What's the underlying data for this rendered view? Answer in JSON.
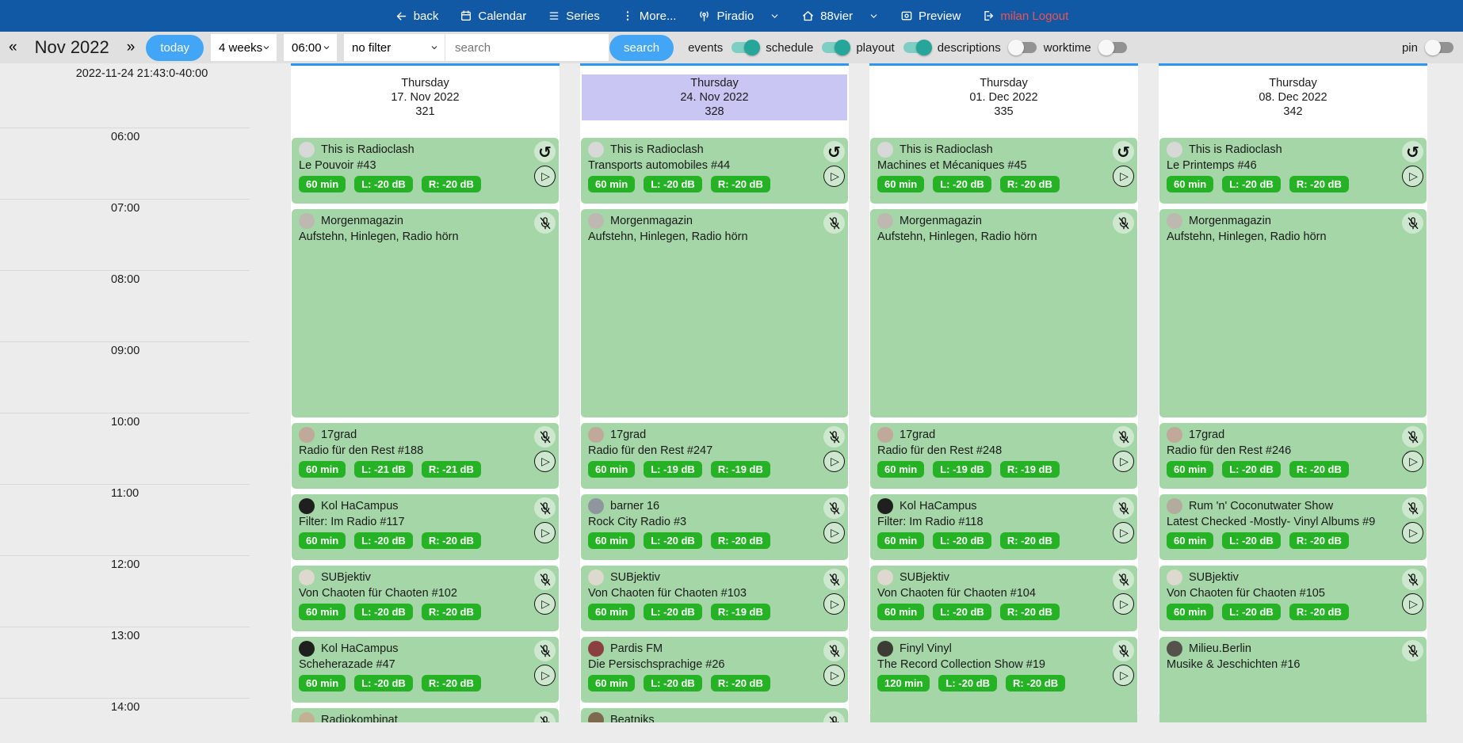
{
  "navbar": {
    "items": [
      {
        "id": "back",
        "label": "back",
        "icon": "arrow-left"
      },
      {
        "id": "calendar",
        "label": "Calendar",
        "icon": "calendar"
      },
      {
        "id": "series",
        "label": "Series",
        "icon": "list"
      },
      {
        "id": "more",
        "label": "More...",
        "icon": "kebab"
      },
      {
        "id": "piradio",
        "label": "Piradio",
        "icon": "antenna",
        "chevron": true
      },
      {
        "id": "88vier",
        "label": "88vier",
        "icon": "home",
        "chevron": true
      },
      {
        "id": "preview",
        "label": "Preview",
        "icon": "preview"
      },
      {
        "id": "logout",
        "label": "milan Logout",
        "icon": "logout",
        "danger": true
      }
    ]
  },
  "toolbar": {
    "prev": "«",
    "month_label": "Nov 2022",
    "next": "»",
    "today_button": "today",
    "range_select": "4 weeks",
    "start_time_select": "06:00",
    "filter_select": "no filter",
    "search_placeholder": "search",
    "search_button": "search",
    "toggles": [
      {
        "label": "events",
        "on": true
      },
      {
        "label": "schedule",
        "on": true
      },
      {
        "label": "playout",
        "on": true
      },
      {
        "label": "descriptions",
        "on": false
      },
      {
        "label": "worktime",
        "on": false
      },
      {
        "label": "pin",
        "on": false,
        "far_right": true
      }
    ]
  },
  "timeline": {
    "timestamp": "2022-11-24 21:43:0-40:00",
    "hours": [
      "06:00",
      "07:00",
      "08:00",
      "09:00",
      "10:00",
      "11:00",
      "12:00",
      "13:00",
      "14:00"
    ]
  },
  "colors": {
    "navbar": "#1159a5",
    "accent_button": "#42a5f5",
    "event_card": "#a5d6a7",
    "badge": "#25b325",
    "highlight_header": "#cac6f3",
    "toggle_on": "#26a69a",
    "logout_text": "#ef5350",
    "column_top_border": "#2d96f2"
  },
  "columns": [
    {
      "day": "Thursday",
      "date": "17. Nov 2022",
      "number": "321",
      "highlighted": false,
      "events": [
        {
          "title": "This is Radioclash",
          "subtitle": "Le Pouvoir #43",
          "badges": [
            "60 min",
            "L: -20 dB",
            "R: -20 dB"
          ],
          "icons": [
            "refresh",
            "play"
          ],
          "start": 6,
          "duration": 1,
          "avatar": "#d8d8d8"
        },
        {
          "title": "Morgenmagazin",
          "subtitle": "Aufstehn, Hinlegen, Radio hörn",
          "badges": [],
          "icons": [
            "mute"
          ],
          "start": 7,
          "duration": 3,
          "avatar": "#bdb8b0"
        },
        {
          "title": "17grad",
          "subtitle": "Radio für den Rest #188",
          "badges": [
            "60 min",
            "L: -21 dB",
            "R: -21 dB"
          ],
          "icons": [
            "mute",
            "play"
          ],
          "start": 10,
          "duration": 1,
          "avatar": "#c0a89a"
        },
        {
          "title": "Kol HaCampus",
          "subtitle": "Filter: Im Radio #117",
          "badges": [
            "60 min",
            "L: -20 dB",
            "R: -20 dB"
          ],
          "icons": [
            "mute",
            "play"
          ],
          "start": 11,
          "duration": 1,
          "avatar": "#1f1f1f"
        },
        {
          "title": "SUBjektiv",
          "subtitle": "Von Chaoten für Chaoten #102",
          "badges": [
            "60 min",
            "L: -20 dB",
            "R: -20 dB"
          ],
          "icons": [
            "mute",
            "play"
          ],
          "start": 12,
          "duration": 1,
          "avatar": "#ded9ce"
        },
        {
          "title": "Kol HaCampus",
          "subtitle": "Scheherazade #47",
          "badges": [
            "60 min",
            "L: -20 dB",
            "R: -20 dB"
          ],
          "icons": [
            "mute",
            "play"
          ],
          "start": 13,
          "duration": 1,
          "avatar": "#1f1f1f"
        },
        {
          "title": "Radiokombinat",
          "subtitle": "",
          "badges": [],
          "icons": [
            "mute"
          ],
          "start": 14,
          "duration": 1,
          "avatar": "#c3b193"
        }
      ]
    },
    {
      "day": "Thursday",
      "date": "24. Nov 2022",
      "number": "328",
      "highlighted": true,
      "events": [
        {
          "title": "This is Radioclash",
          "subtitle": "Transports automobiles #44",
          "badges": [
            "60 min",
            "L: -20 dB",
            "R: -20 dB"
          ],
          "icons": [
            "refresh",
            "play"
          ],
          "start": 6,
          "duration": 1,
          "avatar": "#d8d8d8"
        },
        {
          "title": "Morgenmagazin",
          "subtitle": "Aufstehn, Hinlegen, Radio hörn",
          "badges": [],
          "icons": [
            "mute"
          ],
          "start": 7,
          "duration": 3,
          "avatar": "#bdb8b0"
        },
        {
          "title": "17grad",
          "subtitle": "Radio für den Rest #247",
          "badges": [
            "60 min",
            "L: -19 dB",
            "R: -19 dB"
          ],
          "icons": [
            "mute",
            "play"
          ],
          "start": 10,
          "duration": 1,
          "avatar": "#c0a89a"
        },
        {
          "title": "barner 16",
          "subtitle": "Rock City Radio #3",
          "badges": [
            "60 min",
            "L: -20 dB",
            "R: -20 dB"
          ],
          "icons": [
            "mute",
            "play"
          ],
          "start": 11,
          "duration": 1,
          "avatar": "#8f969e"
        },
        {
          "title": "SUBjektiv",
          "subtitle": "Von Chaoten für Chaoten #103",
          "badges": [
            "60 min",
            "L: -20 dB",
            "R: -19 dB"
          ],
          "icons": [
            "mute",
            "play"
          ],
          "start": 12,
          "duration": 1,
          "avatar": "#ded9ce"
        },
        {
          "title": "Pardis FM",
          "subtitle": "Die Persischsprachige #26",
          "badges": [
            "60 min",
            "L: -20 dB",
            "R: -20 dB"
          ],
          "icons": [
            "mute",
            "play"
          ],
          "start": 13,
          "duration": 1,
          "avatar": "#8a4040"
        },
        {
          "title": "Beatniks",
          "subtitle": "",
          "badges": [],
          "icons": [
            "mute"
          ],
          "start": 14,
          "duration": 1,
          "avatar": "#7d6a4e"
        }
      ]
    },
    {
      "day": "Thursday",
      "date": "01. Dec 2022",
      "number": "335",
      "highlighted": false,
      "events": [
        {
          "title": "This is Radioclash",
          "subtitle": "Machines et Mécaniques #45",
          "badges": [
            "60 min",
            "L: -20 dB",
            "R: -20 dB"
          ],
          "icons": [
            "refresh",
            "play"
          ],
          "start": 6,
          "duration": 1,
          "avatar": "#d8d8d8"
        },
        {
          "title": "Morgenmagazin",
          "subtitle": "Aufstehn, Hinlegen, Radio hörn",
          "badges": [],
          "icons": [
            "mute"
          ],
          "start": 7,
          "duration": 3,
          "avatar": "#bdb8b0"
        },
        {
          "title": "17grad",
          "subtitle": "Radio für den Rest #248",
          "badges": [
            "60 min",
            "L: -19 dB",
            "R: -19 dB"
          ],
          "icons": [
            "mute",
            "play"
          ],
          "start": 10,
          "duration": 1,
          "avatar": "#c0a89a"
        },
        {
          "title": "Kol HaCampus",
          "subtitle": "Filter: Im Radio #118",
          "badges": [
            "60 min",
            "L: -20 dB",
            "R: -20 dB"
          ],
          "icons": [
            "mute",
            "play"
          ],
          "start": 11,
          "duration": 1,
          "avatar": "#1f1f1f"
        },
        {
          "title": "SUBjektiv",
          "subtitle": "Von Chaoten für Chaoten #104",
          "badges": [
            "60 min",
            "L: -20 dB",
            "R: -20 dB"
          ],
          "icons": [
            "mute",
            "play"
          ],
          "start": 12,
          "duration": 1,
          "avatar": "#ded9ce"
        },
        {
          "title": "Finyl Vinyl",
          "subtitle": "The Record Collection Show #19",
          "badges": [
            "120 min",
            "L: -20 dB",
            "R: -20 dB"
          ],
          "icons": [
            "mute",
            "play"
          ],
          "start": 13,
          "duration": 2,
          "avatar": "#3c3c34"
        }
      ]
    },
    {
      "day": "Thursday",
      "date": "08. Dec 2022",
      "number": "342",
      "highlighted": false,
      "events": [
        {
          "title": "This is Radioclash",
          "subtitle": "Le Printemps #46",
          "badges": [
            "60 min",
            "L: -20 dB",
            "R: -20 dB"
          ],
          "icons": [
            "refresh",
            "play"
          ],
          "start": 6,
          "duration": 1,
          "avatar": "#d8d8d8"
        },
        {
          "title": "Morgenmagazin",
          "subtitle": "Aufstehn, Hinlegen, Radio hörn",
          "badges": [],
          "icons": [
            "mute"
          ],
          "start": 7,
          "duration": 3,
          "avatar": "#bdb8b0"
        },
        {
          "title": "17grad",
          "subtitle": "Radio für den Rest #246",
          "badges": [
            "60 min",
            "L: -20 dB",
            "R: -20 dB"
          ],
          "icons": [
            "mute",
            "play"
          ],
          "start": 10,
          "duration": 1,
          "avatar": "#c0a89a"
        },
        {
          "title": "Rum 'n' Coconutwater Show",
          "subtitle": "Latest Checked -Mostly- Vinyl Albums #9",
          "badges": [
            "60 min",
            "L: -20 dB",
            "R: -20 dB"
          ],
          "icons": [
            "mute",
            "play"
          ],
          "start": 11,
          "duration": 1,
          "avatar": "#b3ac9e"
        },
        {
          "title": "SUBjektiv",
          "subtitle": "Von Chaoten für Chaoten #105",
          "badges": [
            "60 min",
            "L: -20 dB",
            "R: -20 dB"
          ],
          "icons": [
            "mute",
            "play"
          ],
          "start": 12,
          "duration": 1,
          "avatar": "#ded9ce"
        },
        {
          "title": "Milieu.Berlin",
          "subtitle": "Musike & Jeschichten #16",
          "badges": [],
          "icons": [
            "mute"
          ],
          "start": 13,
          "duration": 2,
          "avatar": "#55524c"
        }
      ]
    }
  ]
}
